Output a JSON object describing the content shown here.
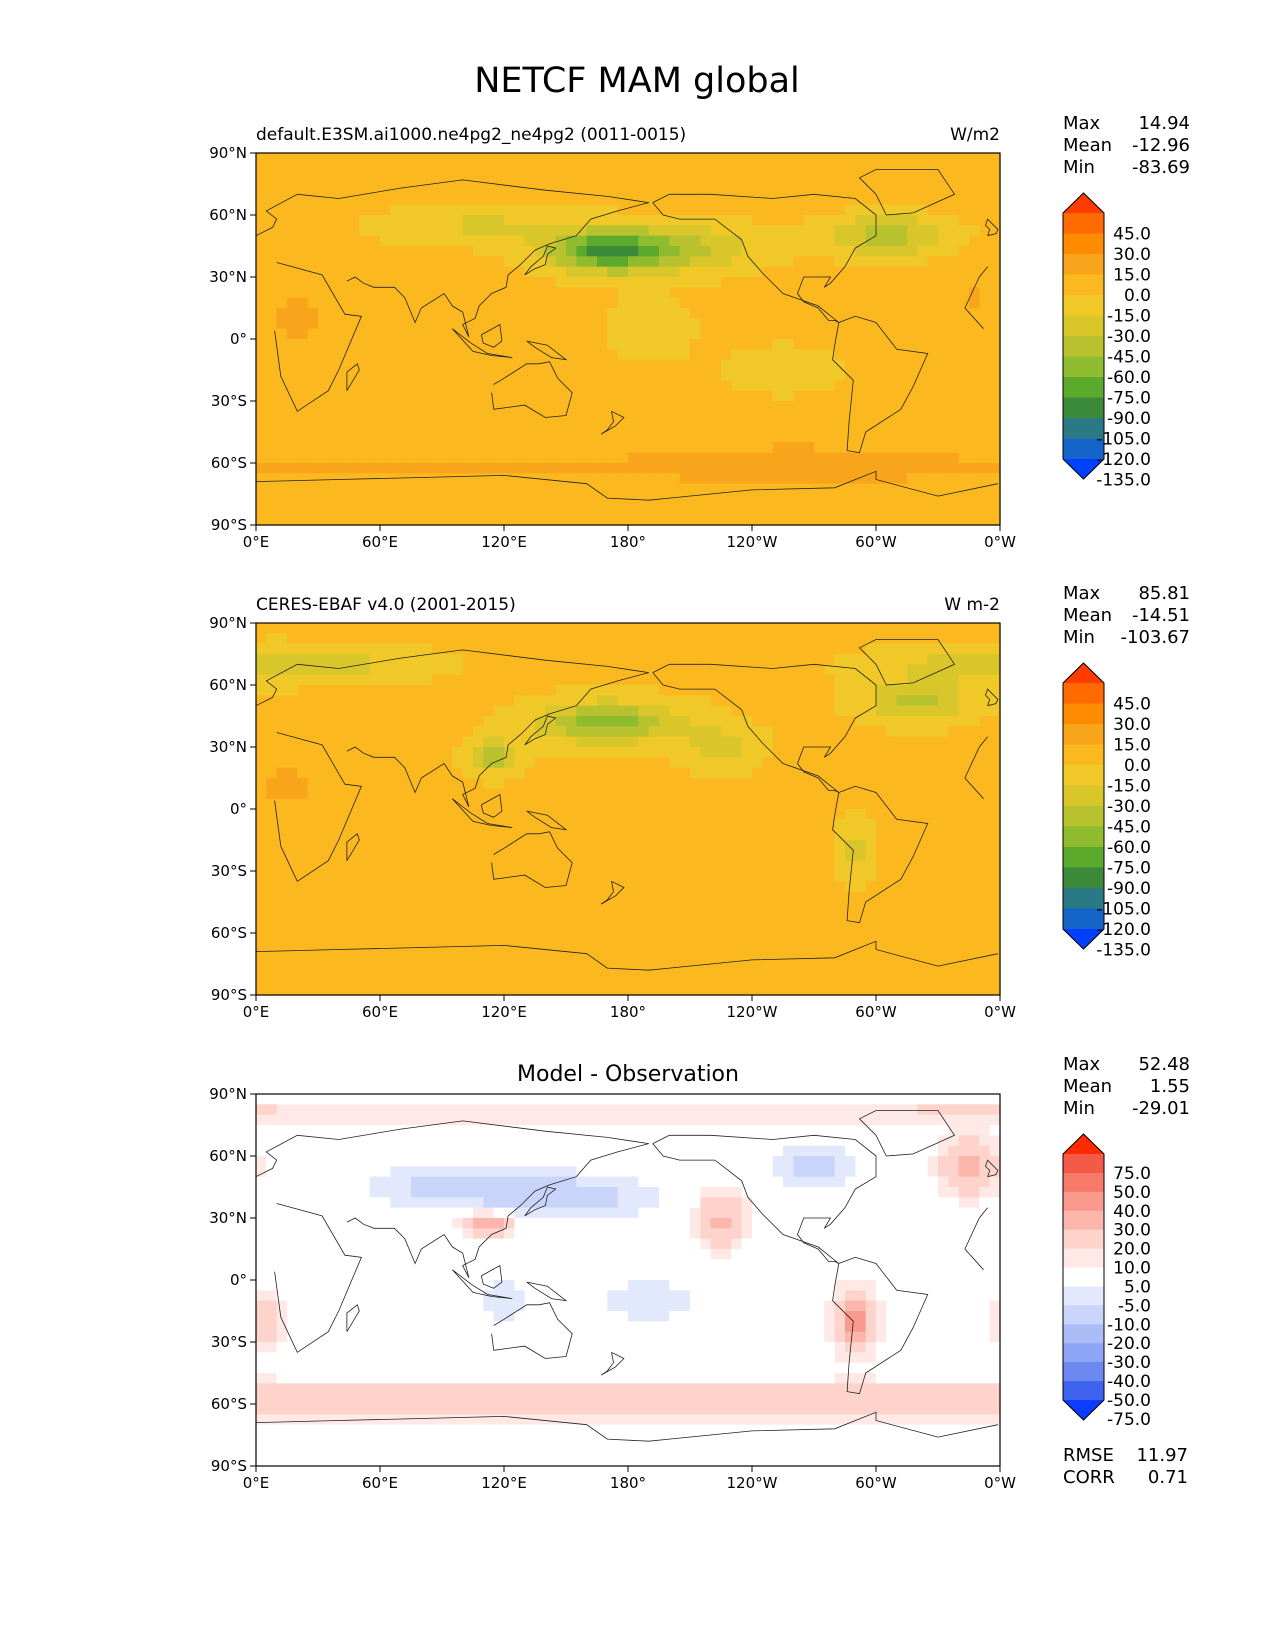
{
  "figure": {
    "title": "NETCF MAM global"
  },
  "axes": {
    "x_ticks": [
      "0°E",
      "60°E",
      "120°E",
      "180°",
      "120°W",
      "60°W",
      "0°W"
    ],
    "y_ticks": [
      "90°N",
      "60°N",
      "30°N",
      "0°",
      "30°S",
      "60°S",
      "90°S"
    ],
    "xlim": [
      0,
      360
    ],
    "ylim": [
      -90,
      90
    ]
  },
  "chart_data": [
    {
      "type": "heatmap",
      "title_left": "default.E3SM.ai1000.ne4pg2_ne4pg2 (0011-0015)",
      "title_right": "W/m2",
      "stats": [
        {
          "label": "Max",
          "value": "14.94"
        },
        {
          "label": "Mean",
          "value": "-12.96"
        },
        {
          "label": "Min",
          "value": "-83.69"
        }
      ],
      "colorbar": {
        "levels": [
          "45.0",
          "30.0",
          "15.0",
          "0.0",
          "-15.0",
          "-30.0",
          "-45.0",
          "-60.0",
          "-75.0",
          "-90.0",
          "-105.0",
          "-120.0",
          "-135.0"
        ],
        "colors": [
          "#ff3c00",
          "#ff6a00",
          "#ff8c00",
          "#f9a51c",
          "#fbb81f",
          "#f0c928",
          "#d9c62b",
          "#b8c22e",
          "#8fbc2f",
          "#5caa2c",
          "#3b8a3a",
          "#2a7a86",
          "#1564c8",
          "#0040ff"
        ]
      }
    },
    {
      "type": "heatmap",
      "title_left": "CERES-EBAF v4.0 (2001-2015)",
      "title_right": "W m-2",
      "stats": [
        {
          "label": "Max",
          "value": "85.81"
        },
        {
          "label": "Mean",
          "value": "-14.51"
        },
        {
          "label": "Min",
          "value": "-103.67"
        }
      ],
      "colorbar": {
        "levels": [
          "45.0",
          "30.0",
          "15.0",
          "0.0",
          "-15.0",
          "-30.0",
          "-45.0",
          "-60.0",
          "-75.0",
          "-90.0",
          "-105.0",
          "-120.0",
          "-135.0"
        ],
        "colors": [
          "#ff3c00",
          "#ff6a00",
          "#ff8c00",
          "#f9a51c",
          "#fbb81f",
          "#f0c928",
          "#d9c62b",
          "#b8c22e",
          "#8fbc2f",
          "#5caa2c",
          "#3b8a3a",
          "#2a7a86",
          "#1564c8",
          "#0040ff"
        ]
      }
    },
    {
      "type": "heatmap",
      "title_center": "Model - Observation",
      "stats": [
        {
          "label": "Max",
          "value": "52.48"
        },
        {
          "label": "Mean",
          "value": "1.55"
        },
        {
          "label": "Min",
          "value": "-29.01"
        }
      ],
      "bottom_stats": [
        {
          "label": "RMSE",
          "value": "11.97"
        },
        {
          "label": "CORR",
          "value": "0.71"
        }
      ],
      "colorbar": {
        "levels": [
          "75.0",
          "50.0",
          "40.0",
          "30.0",
          "20.0",
          "10.0",
          "5.0",
          "-5.0",
          "-10.0",
          "-20.0",
          "-30.0",
          "-40.0",
          "-50.0",
          "-75.0"
        ],
        "colors": [
          "#ff2a00",
          "#f55a46",
          "#f7796a",
          "#f99a8d",
          "#fbb5ab",
          "#fdd3cc",
          "#fee9e6",
          "#ffffff",
          "#e3e9fc",
          "#c9d4fa",
          "#acbcf7",
          "#8ea4f4",
          "#6c88f1",
          "#3f63ee",
          "#0b3cff"
        ]
      }
    }
  ]
}
